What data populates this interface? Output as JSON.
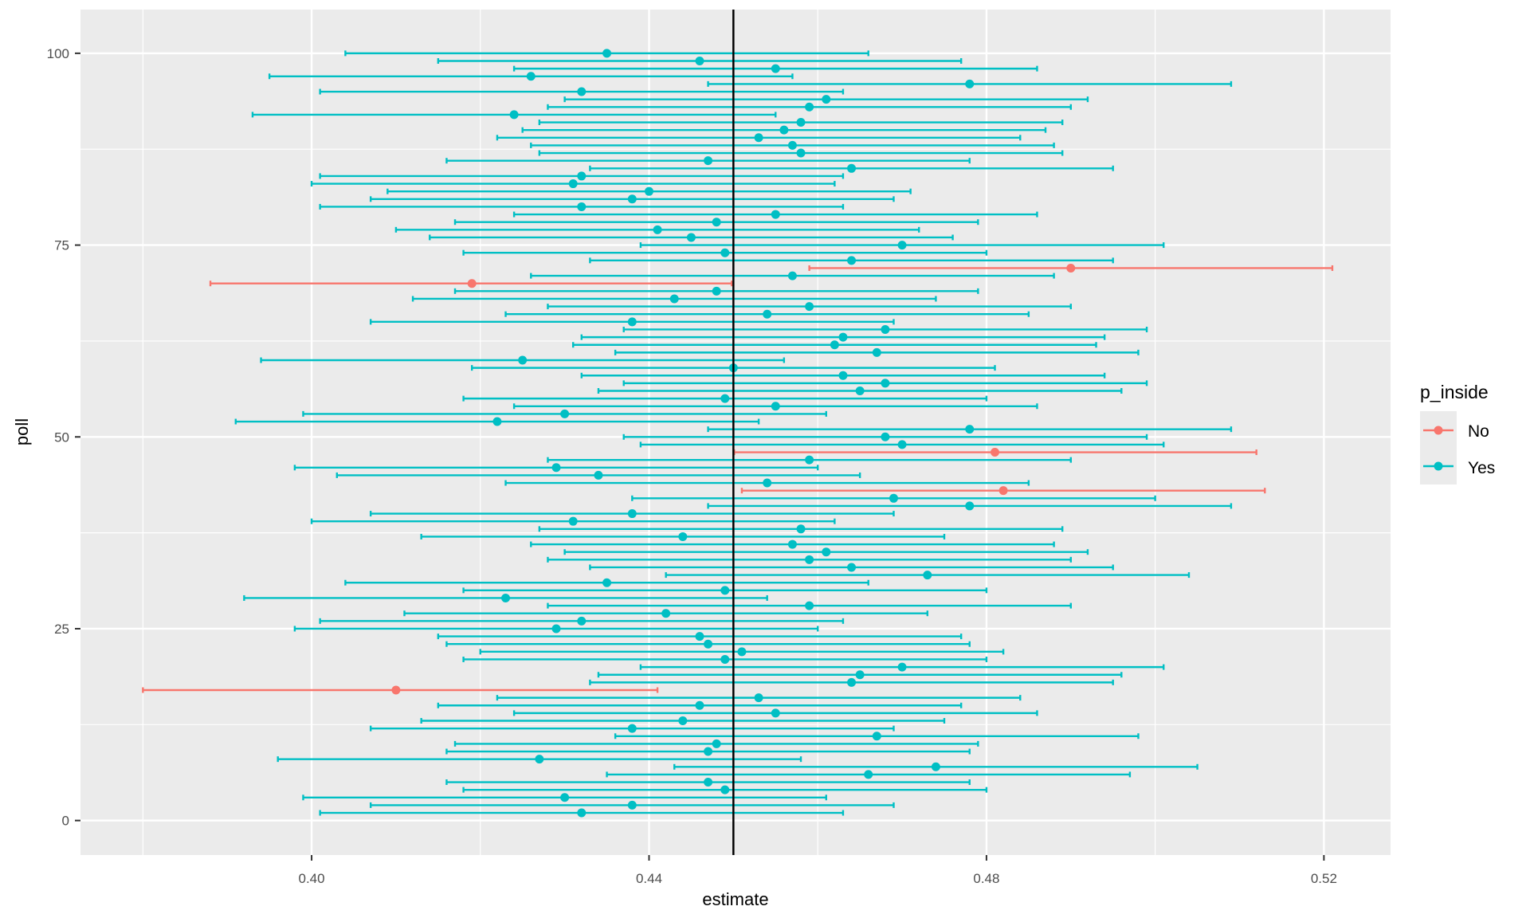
{
  "chart_data": {
    "type": "errorbar-point",
    "xlabel": "estimate",
    "ylabel": "poll",
    "xlim": [
      0.3726,
      0.5279
    ],
    "ylim": [
      -4.5,
      105.7
    ],
    "x_ticks": [
      "0.40",
      "0.44",
      "0.48",
      "0.52"
    ],
    "y_ticks": [
      "0",
      "25",
      "50",
      "75",
      "100"
    ],
    "reference_line_x": 0.45,
    "grid": true,
    "legend": {
      "title": "p_inside",
      "position": "right",
      "entries": [
        "No",
        "Yes"
      ]
    },
    "colors": {
      "No": "#F8766D",
      "Yes": "#00BFC4"
    },
    "points": [
      {
        "poll": 1,
        "estimate": 0.432,
        "lower": 0.401,
        "upper": 0.463,
        "p_inside": "Yes"
      },
      {
        "poll": 2,
        "estimate": 0.438,
        "lower": 0.407,
        "upper": 0.469,
        "p_inside": "Yes"
      },
      {
        "poll": 3,
        "estimate": 0.43,
        "lower": 0.399,
        "upper": 0.461,
        "p_inside": "Yes"
      },
      {
        "poll": 4,
        "estimate": 0.449,
        "lower": 0.418,
        "upper": 0.48,
        "p_inside": "Yes"
      },
      {
        "poll": 5,
        "estimate": 0.447,
        "lower": 0.416,
        "upper": 0.478,
        "p_inside": "Yes"
      },
      {
        "poll": 6,
        "estimate": 0.466,
        "lower": 0.435,
        "upper": 0.497,
        "p_inside": "Yes"
      },
      {
        "poll": 7,
        "estimate": 0.474,
        "lower": 0.443,
        "upper": 0.505,
        "p_inside": "Yes"
      },
      {
        "poll": 8,
        "estimate": 0.427,
        "lower": 0.396,
        "upper": 0.458,
        "p_inside": "Yes"
      },
      {
        "poll": 9,
        "estimate": 0.447,
        "lower": 0.416,
        "upper": 0.478,
        "p_inside": "Yes"
      },
      {
        "poll": 10,
        "estimate": 0.448,
        "lower": 0.417,
        "upper": 0.479,
        "p_inside": "Yes"
      },
      {
        "poll": 11,
        "estimate": 0.467,
        "lower": 0.436,
        "upper": 0.498,
        "p_inside": "Yes"
      },
      {
        "poll": 12,
        "estimate": 0.438,
        "lower": 0.407,
        "upper": 0.469,
        "p_inside": "Yes"
      },
      {
        "poll": 13,
        "estimate": 0.444,
        "lower": 0.413,
        "upper": 0.475,
        "p_inside": "Yes"
      },
      {
        "poll": 14,
        "estimate": 0.455,
        "lower": 0.424,
        "upper": 0.486,
        "p_inside": "Yes"
      },
      {
        "poll": 15,
        "estimate": 0.446,
        "lower": 0.415,
        "upper": 0.477,
        "p_inside": "Yes"
      },
      {
        "poll": 16,
        "estimate": 0.453,
        "lower": 0.422,
        "upper": 0.484,
        "p_inside": "Yes"
      },
      {
        "poll": 17,
        "estimate": 0.41,
        "lower": 0.38,
        "upper": 0.441,
        "p_inside": "No"
      },
      {
        "poll": 18,
        "estimate": 0.464,
        "lower": 0.433,
        "upper": 0.495,
        "p_inside": "Yes"
      },
      {
        "poll": 19,
        "estimate": 0.465,
        "lower": 0.434,
        "upper": 0.496,
        "p_inside": "Yes"
      },
      {
        "poll": 20,
        "estimate": 0.47,
        "lower": 0.439,
        "upper": 0.501,
        "p_inside": "Yes"
      },
      {
        "poll": 21,
        "estimate": 0.449,
        "lower": 0.418,
        "upper": 0.48,
        "p_inside": "Yes"
      },
      {
        "poll": 22,
        "estimate": 0.451,
        "lower": 0.42,
        "upper": 0.482,
        "p_inside": "Yes"
      },
      {
        "poll": 23,
        "estimate": 0.447,
        "lower": 0.416,
        "upper": 0.478,
        "p_inside": "Yes"
      },
      {
        "poll": 24,
        "estimate": 0.446,
        "lower": 0.415,
        "upper": 0.477,
        "p_inside": "Yes"
      },
      {
        "poll": 25,
        "estimate": 0.429,
        "lower": 0.398,
        "upper": 0.46,
        "p_inside": "Yes"
      },
      {
        "poll": 26,
        "estimate": 0.432,
        "lower": 0.401,
        "upper": 0.463,
        "p_inside": "Yes"
      },
      {
        "poll": 27,
        "estimate": 0.442,
        "lower": 0.411,
        "upper": 0.473,
        "p_inside": "Yes"
      },
      {
        "poll": 28,
        "estimate": 0.459,
        "lower": 0.428,
        "upper": 0.49,
        "p_inside": "Yes"
      },
      {
        "poll": 29,
        "estimate": 0.423,
        "lower": 0.392,
        "upper": 0.454,
        "p_inside": "Yes"
      },
      {
        "poll": 30,
        "estimate": 0.449,
        "lower": 0.418,
        "upper": 0.48,
        "p_inside": "Yes"
      },
      {
        "poll": 31,
        "estimate": 0.435,
        "lower": 0.404,
        "upper": 0.466,
        "p_inside": "Yes"
      },
      {
        "poll": 32,
        "estimate": 0.473,
        "lower": 0.442,
        "upper": 0.504,
        "p_inside": "Yes"
      },
      {
        "poll": 33,
        "estimate": 0.464,
        "lower": 0.433,
        "upper": 0.495,
        "p_inside": "Yes"
      },
      {
        "poll": 34,
        "estimate": 0.459,
        "lower": 0.428,
        "upper": 0.49,
        "p_inside": "Yes"
      },
      {
        "poll": 35,
        "estimate": 0.461,
        "lower": 0.43,
        "upper": 0.492,
        "p_inside": "Yes"
      },
      {
        "poll": 36,
        "estimate": 0.457,
        "lower": 0.426,
        "upper": 0.488,
        "p_inside": "Yes"
      },
      {
        "poll": 37,
        "estimate": 0.444,
        "lower": 0.413,
        "upper": 0.475,
        "p_inside": "Yes"
      },
      {
        "poll": 38,
        "estimate": 0.458,
        "lower": 0.427,
        "upper": 0.489,
        "p_inside": "Yes"
      },
      {
        "poll": 39,
        "estimate": 0.431,
        "lower": 0.4,
        "upper": 0.462,
        "p_inside": "Yes"
      },
      {
        "poll": 40,
        "estimate": 0.438,
        "lower": 0.407,
        "upper": 0.469,
        "p_inside": "Yes"
      },
      {
        "poll": 41,
        "estimate": 0.478,
        "lower": 0.447,
        "upper": 0.509,
        "p_inside": "Yes"
      },
      {
        "poll": 42,
        "estimate": 0.469,
        "lower": 0.438,
        "upper": 0.5,
        "p_inside": "Yes"
      },
      {
        "poll": 43,
        "estimate": 0.482,
        "lower": 0.451,
        "upper": 0.513,
        "p_inside": "No"
      },
      {
        "poll": 44,
        "estimate": 0.454,
        "lower": 0.423,
        "upper": 0.485,
        "p_inside": "Yes"
      },
      {
        "poll": 45,
        "estimate": 0.434,
        "lower": 0.403,
        "upper": 0.465,
        "p_inside": "Yes"
      },
      {
        "poll": 46,
        "estimate": 0.429,
        "lower": 0.398,
        "upper": 0.46,
        "p_inside": "Yes"
      },
      {
        "poll": 47,
        "estimate": 0.459,
        "lower": 0.428,
        "upper": 0.49,
        "p_inside": "Yes"
      },
      {
        "poll": 48,
        "estimate": 0.481,
        "lower": 0.4501,
        "upper": 0.512,
        "p_inside": "No"
      },
      {
        "poll": 49,
        "estimate": 0.47,
        "lower": 0.439,
        "upper": 0.501,
        "p_inside": "Yes"
      },
      {
        "poll": 50,
        "estimate": 0.468,
        "lower": 0.437,
        "upper": 0.499,
        "p_inside": "Yes"
      },
      {
        "poll": 51,
        "estimate": 0.478,
        "lower": 0.447,
        "upper": 0.509,
        "p_inside": "Yes"
      },
      {
        "poll": 52,
        "estimate": 0.422,
        "lower": 0.391,
        "upper": 0.453,
        "p_inside": "Yes"
      },
      {
        "poll": 53,
        "estimate": 0.43,
        "lower": 0.399,
        "upper": 0.461,
        "p_inside": "Yes"
      },
      {
        "poll": 54,
        "estimate": 0.455,
        "lower": 0.424,
        "upper": 0.486,
        "p_inside": "Yes"
      },
      {
        "poll": 55,
        "estimate": 0.449,
        "lower": 0.418,
        "upper": 0.48,
        "p_inside": "Yes"
      },
      {
        "poll": 56,
        "estimate": 0.465,
        "lower": 0.434,
        "upper": 0.496,
        "p_inside": "Yes"
      },
      {
        "poll": 57,
        "estimate": 0.468,
        "lower": 0.437,
        "upper": 0.499,
        "p_inside": "Yes"
      },
      {
        "poll": 58,
        "estimate": 0.463,
        "lower": 0.432,
        "upper": 0.494,
        "p_inside": "Yes"
      },
      {
        "poll": 59,
        "estimate": 0.45,
        "lower": 0.419,
        "upper": 0.481,
        "p_inside": "Yes"
      },
      {
        "poll": 60,
        "estimate": 0.425,
        "lower": 0.394,
        "upper": 0.456,
        "p_inside": "Yes"
      },
      {
        "poll": 61,
        "estimate": 0.467,
        "lower": 0.436,
        "upper": 0.498,
        "p_inside": "Yes"
      },
      {
        "poll": 62,
        "estimate": 0.462,
        "lower": 0.431,
        "upper": 0.493,
        "p_inside": "Yes"
      },
      {
        "poll": 63,
        "estimate": 0.463,
        "lower": 0.432,
        "upper": 0.494,
        "p_inside": "Yes"
      },
      {
        "poll": 64,
        "estimate": 0.468,
        "lower": 0.437,
        "upper": 0.499,
        "p_inside": "Yes"
      },
      {
        "poll": 65,
        "estimate": 0.438,
        "lower": 0.407,
        "upper": 0.469,
        "p_inside": "Yes"
      },
      {
        "poll": 66,
        "estimate": 0.454,
        "lower": 0.423,
        "upper": 0.485,
        "p_inside": "Yes"
      },
      {
        "poll": 67,
        "estimate": 0.459,
        "lower": 0.428,
        "upper": 0.49,
        "p_inside": "Yes"
      },
      {
        "poll": 68,
        "estimate": 0.443,
        "lower": 0.412,
        "upper": 0.474,
        "p_inside": "Yes"
      },
      {
        "poll": 69,
        "estimate": 0.448,
        "lower": 0.417,
        "upper": 0.479,
        "p_inside": "Yes"
      },
      {
        "poll": 70,
        "estimate": 0.419,
        "lower": 0.388,
        "upper": 0.4498,
        "p_inside": "No"
      },
      {
        "poll": 71,
        "estimate": 0.457,
        "lower": 0.426,
        "upper": 0.488,
        "p_inside": "Yes"
      },
      {
        "poll": 72,
        "estimate": 0.49,
        "lower": 0.459,
        "upper": 0.521,
        "p_inside": "No"
      },
      {
        "poll": 73,
        "estimate": 0.464,
        "lower": 0.433,
        "upper": 0.495,
        "p_inside": "Yes"
      },
      {
        "poll": 74,
        "estimate": 0.449,
        "lower": 0.418,
        "upper": 0.48,
        "p_inside": "Yes"
      },
      {
        "poll": 75,
        "estimate": 0.47,
        "lower": 0.439,
        "upper": 0.501,
        "p_inside": "Yes"
      },
      {
        "poll": 76,
        "estimate": 0.445,
        "lower": 0.414,
        "upper": 0.476,
        "p_inside": "Yes"
      },
      {
        "poll": 77,
        "estimate": 0.441,
        "lower": 0.41,
        "upper": 0.472,
        "p_inside": "Yes"
      },
      {
        "poll": 78,
        "estimate": 0.448,
        "lower": 0.417,
        "upper": 0.479,
        "p_inside": "Yes"
      },
      {
        "poll": 79,
        "estimate": 0.455,
        "lower": 0.424,
        "upper": 0.486,
        "p_inside": "Yes"
      },
      {
        "poll": 80,
        "estimate": 0.432,
        "lower": 0.401,
        "upper": 0.463,
        "p_inside": "Yes"
      },
      {
        "poll": 81,
        "estimate": 0.438,
        "lower": 0.407,
        "upper": 0.469,
        "p_inside": "Yes"
      },
      {
        "poll": 82,
        "estimate": 0.44,
        "lower": 0.409,
        "upper": 0.471,
        "p_inside": "Yes"
      },
      {
        "poll": 83,
        "estimate": 0.431,
        "lower": 0.4,
        "upper": 0.462,
        "p_inside": "Yes"
      },
      {
        "poll": 84,
        "estimate": 0.432,
        "lower": 0.401,
        "upper": 0.463,
        "p_inside": "Yes"
      },
      {
        "poll": 85,
        "estimate": 0.464,
        "lower": 0.433,
        "upper": 0.495,
        "p_inside": "Yes"
      },
      {
        "poll": 86,
        "estimate": 0.447,
        "lower": 0.416,
        "upper": 0.478,
        "p_inside": "Yes"
      },
      {
        "poll": 87,
        "estimate": 0.458,
        "lower": 0.427,
        "upper": 0.489,
        "p_inside": "Yes"
      },
      {
        "poll": 88,
        "estimate": 0.457,
        "lower": 0.426,
        "upper": 0.488,
        "p_inside": "Yes"
      },
      {
        "poll": 89,
        "estimate": 0.453,
        "lower": 0.422,
        "upper": 0.484,
        "p_inside": "Yes"
      },
      {
        "poll": 90,
        "estimate": 0.456,
        "lower": 0.425,
        "upper": 0.487,
        "p_inside": "Yes"
      },
      {
        "poll": 91,
        "estimate": 0.458,
        "lower": 0.427,
        "upper": 0.489,
        "p_inside": "Yes"
      },
      {
        "poll": 92,
        "estimate": 0.424,
        "lower": 0.393,
        "upper": 0.455,
        "p_inside": "Yes"
      },
      {
        "poll": 93,
        "estimate": 0.459,
        "lower": 0.428,
        "upper": 0.49,
        "p_inside": "Yes"
      },
      {
        "poll": 94,
        "estimate": 0.461,
        "lower": 0.43,
        "upper": 0.492,
        "p_inside": "Yes"
      },
      {
        "poll": 95,
        "estimate": 0.432,
        "lower": 0.401,
        "upper": 0.463,
        "p_inside": "Yes"
      },
      {
        "poll": 96,
        "estimate": 0.478,
        "lower": 0.447,
        "upper": 0.509,
        "p_inside": "Yes"
      },
      {
        "poll": 97,
        "estimate": 0.426,
        "lower": 0.395,
        "upper": 0.457,
        "p_inside": "Yes"
      },
      {
        "poll": 98,
        "estimate": 0.455,
        "lower": 0.424,
        "upper": 0.486,
        "p_inside": "Yes"
      },
      {
        "poll": 99,
        "estimate": 0.446,
        "lower": 0.415,
        "upper": 0.477,
        "p_inside": "Yes"
      },
      {
        "poll": 100,
        "estimate": 0.435,
        "lower": 0.404,
        "upper": 0.466,
        "p_inside": "Yes"
      }
    ]
  }
}
